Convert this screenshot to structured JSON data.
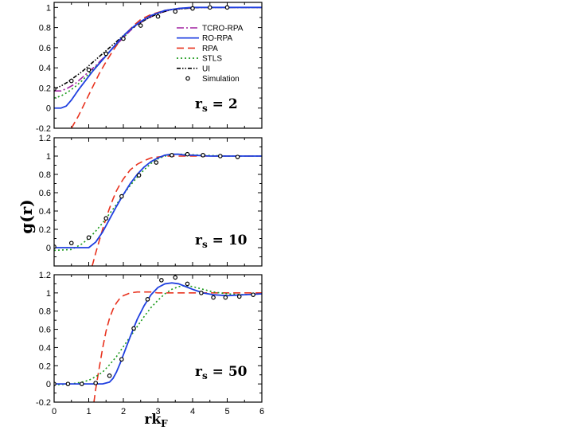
{
  "chart_data": {
    "type": "line",
    "ylabel": "g(r)",
    "xlabel": "rk",
    "xlabel_sub": "F",
    "xlim": [
      0,
      6
    ],
    "xticks": [
      "0",
      "1",
      "2",
      "3",
      "4",
      "5",
      "6"
    ],
    "legend": {
      "placement": "top-right of first panel",
      "entries": [
        {
          "key": "tcro",
          "label": "TCRO-RPA"
        },
        {
          "key": "ro",
          "label": "RO-RPA"
        },
        {
          "key": "rpa",
          "label": "RPA"
        },
        {
          "key": "stls",
          "label": "STLS"
        },
        {
          "key": "ui",
          "label": "UI"
        },
        {
          "key": "sim",
          "label": "Simulation"
        }
      ]
    },
    "styles": {
      "tcro": {
        "color": "#a020a0",
        "dash": "9,3,2,3"
      },
      "ro": {
        "color": "#1f3fe0",
        "dash": ""
      },
      "rpa": {
        "color": "#e8321e",
        "dash": "9,5"
      },
      "stls": {
        "color": "#1a9a1a",
        "dash": "2,3"
      },
      "ui": {
        "color": "#000000",
        "dash": "5,2,1.5,2,1.5,2"
      },
      "sim": {
        "color": "#000000"
      }
    },
    "panels": [
      {
        "id": "rs2",
        "label_var": "r",
        "label_sub": "s",
        "label_val": " = 2",
        "ylim": [
          -0.2,
          1.05
        ],
        "yticks": [
          "-0.2",
          "0",
          "0.2",
          "0.4",
          "0.6",
          "0.8",
          "1"
        ],
        "ytick_values": [
          -0.2,
          0,
          0.2,
          0.4,
          0.6,
          0.8,
          1
        ],
        "series": [
          {
            "key": "rpa",
            "x": [
              0.5,
              0.7,
              0.9,
              1.1,
              1.3,
              1.5,
              1.7,
              1.9,
              2.1,
              2.3,
              2.5,
              2.8,
              3.2,
              3.6,
              4.0,
              4.5,
              5.0,
              6.0
            ],
            "y": [
              -0.2,
              -0.08,
              0.06,
              0.2,
              0.34,
              0.46,
              0.57,
              0.67,
              0.75,
              0.82,
              0.88,
              0.93,
              0.97,
              0.99,
              1.0,
              1.0,
              1.0,
              1.0
            ]
          },
          {
            "key": "ro",
            "x": [
              0,
              0.2,
              0.35,
              0.5,
              0.7,
              0.9,
              1.1,
              1.3,
              1.5,
              1.7,
              1.9,
              2.1,
              2.3,
              2.5,
              2.8,
              3.2,
              3.6,
              4.0,
              4.5,
              5.0,
              6.0
            ],
            "y": [
              0.0,
              0.0,
              0.02,
              0.08,
              0.18,
              0.27,
              0.36,
              0.44,
              0.52,
              0.6,
              0.68,
              0.75,
              0.81,
              0.86,
              0.92,
              0.97,
              0.99,
              1.0,
              1.0,
              1.0,
              1.0
            ]
          },
          {
            "key": "tcro",
            "x": [
              0,
              0.2,
              0.4,
              0.6,
              0.8,
              1.0,
              1.2,
              1.4,
              1.6,
              1.8,
              2.0,
              2.2,
              2.4,
              2.7,
              3.0,
              3.4,
              3.8,
              4.2,
              5.0,
              6.0
            ],
            "y": [
              0.17,
              0.17,
              0.2,
              0.24,
              0.3,
              0.36,
              0.42,
              0.49,
              0.56,
              0.63,
              0.7,
              0.77,
              0.83,
              0.89,
              0.94,
              0.98,
              0.99,
              1.0,
              1.0,
              1.0
            ]
          },
          {
            "key": "stls",
            "x": [
              0,
              0.2,
              0.4,
              0.6,
              0.8,
              1.0,
              1.2,
              1.4,
              1.6,
              1.8,
              2.0,
              2.2,
              2.4,
              2.7,
              3.0,
              3.4,
              3.8,
              4.2,
              5.0,
              6.0
            ],
            "y": [
              0.1,
              0.12,
              0.16,
              0.21,
              0.27,
              0.34,
              0.41,
              0.48,
              0.56,
              0.63,
              0.7,
              0.77,
              0.83,
              0.89,
              0.94,
              0.98,
              0.99,
              1.0,
              1.0,
              1.0
            ]
          },
          {
            "key": "ui",
            "x": [
              0,
              0.2,
              0.4,
              0.6,
              0.8,
              1.0,
              1.2,
              1.4,
              1.6,
              1.8,
              2.0,
              2.2,
              2.4,
              2.7,
              3.0,
              3.4,
              3.8,
              4.2,
              5.0,
              6.0
            ],
            "y": [
              0.19,
              0.22,
              0.26,
              0.31,
              0.36,
              0.42,
              0.48,
              0.54,
              0.6,
              0.66,
              0.72,
              0.78,
              0.83,
              0.89,
              0.94,
              0.98,
              0.99,
              1.0,
              1.0,
              1.0
            ]
          },
          {
            "key": "sim",
            "x": [
              0.0,
              0.5,
              1.0,
              1.5,
              2.0,
              2.5,
              3.0,
              3.5,
              4.0,
              4.5,
              5.0
            ],
            "y": [
              0.19,
              0.27,
              0.38,
              0.54,
              0.69,
              0.82,
              0.91,
              0.96,
              0.99,
              1.0,
              1.0
            ]
          }
        ]
      },
      {
        "id": "rs10",
        "label_var": "r",
        "label_sub": "s",
        "label_val": " = 10",
        "ylim": [
          -0.2,
          1.2
        ],
        "yticks": [
          "0",
          "0.2",
          "0.4",
          "0.6",
          "0.8",
          "1",
          "1.2"
        ],
        "ytick_values": [
          0,
          0.2,
          0.4,
          0.6,
          0.8,
          1,
          1.2
        ],
        "series": [
          {
            "key": "rpa",
            "x": [
              1.1,
              1.2,
              1.3,
              1.4,
              1.5,
              1.6,
              1.7,
              1.8,
              1.9,
              2.0,
              2.1,
              2.2,
              2.4,
              2.6,
              2.8,
              3.0,
              3.2,
              3.5,
              4.0,
              5.0,
              6.0
            ],
            "y": [
              -0.2,
              -0.06,
              0.07,
              0.2,
              0.32,
              0.43,
              0.53,
              0.62,
              0.69,
              0.75,
              0.8,
              0.85,
              0.91,
              0.95,
              0.98,
              0.99,
              1.0,
              1.0,
              1.0,
              1.0,
              1.0
            ]
          },
          {
            "key": "ro",
            "x": [
              0,
              0.6,
              1.0,
              1.2,
              1.4,
              1.6,
              1.8,
              2.0,
              2.2,
              2.4,
              2.6,
              2.8,
              3.0,
              3.2,
              3.4,
              3.6,
              3.8,
              4.0,
              4.5,
              5.0,
              6.0
            ],
            "y": [
              0.0,
              0.0,
              0.0,
              0.06,
              0.17,
              0.31,
              0.45,
              0.58,
              0.7,
              0.8,
              0.88,
              0.94,
              0.98,
              1.01,
              1.02,
              1.02,
              1.01,
              1.01,
              1.0,
              1.0,
              1.0
            ]
          },
          {
            "key": "stls",
            "x": [
              0,
              0.5,
              0.8,
              1.0,
              1.2,
              1.4,
              1.6,
              1.8,
              2.0,
              2.2,
              2.4,
              2.6,
              2.8,
              3.0,
              3.2,
              3.5,
              3.8,
              4.2,
              5.0,
              6.0
            ],
            "y": [
              -0.03,
              -0.02,
              0.04,
              0.1,
              0.18,
              0.27,
              0.37,
              0.47,
              0.58,
              0.68,
              0.77,
              0.85,
              0.92,
              0.97,
              1.0,
              1.02,
              1.02,
              1.01,
              1.0,
              1.0
            ]
          },
          {
            "key": "sim",
            "x": [
              0.0,
              0.5,
              1.0,
              1.5,
              1.95,
              2.45,
              2.95,
              3.4,
              3.85,
              4.3,
              4.8,
              5.3
            ],
            "y": [
              0.01,
              0.05,
              0.11,
              0.32,
              0.56,
              0.79,
              0.93,
              1.01,
              1.02,
              1.01,
              1.0,
              0.99
            ]
          }
        ]
      },
      {
        "id": "rs50",
        "label_var": "r",
        "label_sub": "s",
        "label_val": " = 50",
        "ylim": [
          -0.2,
          1.2
        ],
        "yticks": [
          "-0.2",
          "0",
          "0.2",
          "0.4",
          "0.6",
          "0.8",
          "1",
          "1.2"
        ],
        "ytick_values": [
          -0.2,
          0,
          0.2,
          0.4,
          0.6,
          0.8,
          1,
          1.2
        ],
        "series": [
          {
            "key": "rpa",
            "x": [
              1.15,
              1.2,
              1.3,
              1.4,
              1.5,
              1.6,
              1.7,
              1.8,
              1.9,
              2.0,
              2.2,
              2.4,
              2.6,
              2.8,
              3.0,
              3.5,
              4.0,
              5.0,
              6.0
            ],
            "y": [
              -0.2,
              -0.06,
              0.17,
              0.39,
              0.58,
              0.72,
              0.82,
              0.89,
              0.94,
              0.97,
              1.0,
              1.01,
              1.01,
              1.01,
              1.0,
              1.0,
              1.0,
              1.0,
              1.0
            ]
          },
          {
            "key": "ro",
            "x": [
              0,
              1.0,
              1.4,
              1.6,
              1.7,
              1.8,
              1.9,
              2.0,
              2.2,
              2.4,
              2.6,
              2.8,
              3.0,
              3.2,
              3.4,
              3.6,
              3.8,
              4.0,
              4.3,
              4.6,
              5.0,
              5.5,
              6.0
            ],
            "y": [
              0.0,
              0.0,
              0.0,
              0.02,
              0.06,
              0.13,
              0.22,
              0.32,
              0.52,
              0.71,
              0.86,
              0.98,
              1.06,
              1.1,
              1.11,
              1.1,
              1.07,
              1.04,
              1.0,
              0.98,
              0.97,
              0.98,
              0.99
            ]
          },
          {
            "key": "stls",
            "x": [
              0,
              0.5,
              0.8,
              1.0,
              1.2,
              1.4,
              1.6,
              1.8,
              2.0,
              2.2,
              2.4,
              2.6,
              2.8,
              3.0,
              3.2,
              3.4,
              3.6,
              3.8,
              4.0,
              4.3,
              4.6,
              5.0,
              5.5,
              6.0
            ],
            "y": [
              -0.01,
              0.0,
              0.02,
              0.04,
              0.08,
              0.13,
              0.21,
              0.3,
              0.41,
              0.52,
              0.63,
              0.74,
              0.84,
              0.92,
              0.99,
              1.04,
              1.07,
              1.08,
              1.07,
              1.04,
              1.01,
              0.99,
              0.98,
              0.99
            ]
          },
          {
            "key": "sim",
            "x": [
              0.0,
              0.4,
              0.8,
              1.2,
              1.6,
              1.95,
              2.3,
              2.7,
              3.1,
              3.5,
              3.85,
              4.25,
              4.6,
              4.95,
              5.35,
              5.75
            ],
            "y": [
              0.0,
              0.0,
              0.0,
              0.01,
              0.09,
              0.27,
              0.61,
              0.93,
              1.14,
              1.17,
              1.1,
              1.0,
              0.95,
              0.95,
              0.96,
              0.98
            ]
          }
        ]
      }
    ]
  }
}
